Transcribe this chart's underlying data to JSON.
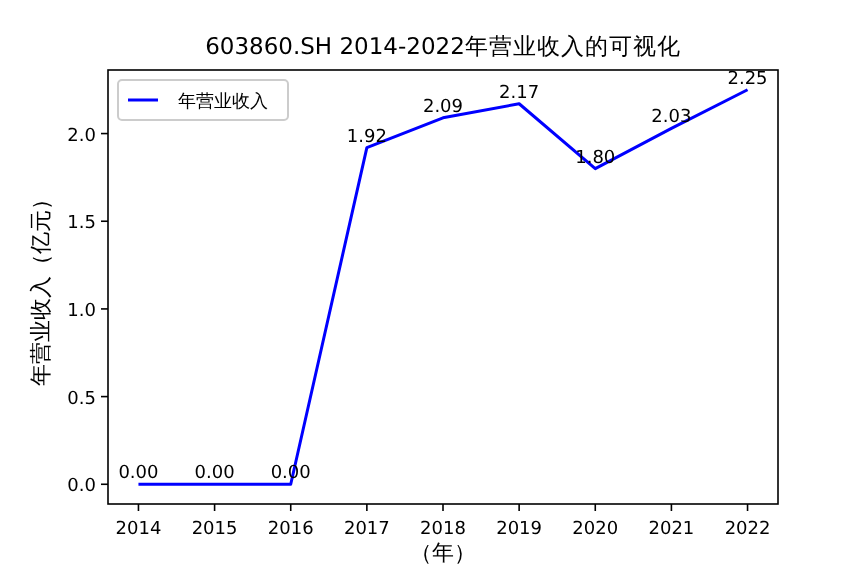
{
  "chart_data": {
    "type": "line",
    "title": "603860.SH 2014-2022年营业收入的可视化",
    "xlabel": "（年）",
    "ylabel": "年营业收入（亿元）",
    "x": [
      2014,
      2015,
      2016,
      2017,
      2018,
      2019,
      2020,
      2021,
      2022
    ],
    "series": [
      {
        "name": "年营业收入",
        "color": "#0000ff",
        "values": [
          0,
          0,
          0,
          1.92,
          2.09,
          2.17,
          1.8,
          2.03,
          2.25
        ],
        "value_labels": [
          "0.00",
          "0.00",
          "0.00",
          "1.92",
          "2.09",
          "2.17",
          "1.80",
          "2.03",
          "2.25"
        ]
      }
    ],
    "xlim": [
      2013.6,
      2022.4
    ],
    "xticks": [
      2014,
      2015,
      2016,
      2017,
      2018,
      2019,
      2020,
      2021,
      2022
    ],
    "ylim": [
      -0.1125,
      2.3625
    ],
    "yticks": [
      {
        "value": 0,
        "label": "0.0"
      },
      {
        "value": 0.5,
        "label": "0.5"
      },
      {
        "value": 1,
        "label": "1.0"
      },
      {
        "value": 1.5,
        "label": "1.5"
      },
      {
        "value": 2,
        "label": "2.0"
      }
    ],
    "legend": "top left",
    "grid": false,
    "marker": "none",
    "line_style": "solid"
  }
}
